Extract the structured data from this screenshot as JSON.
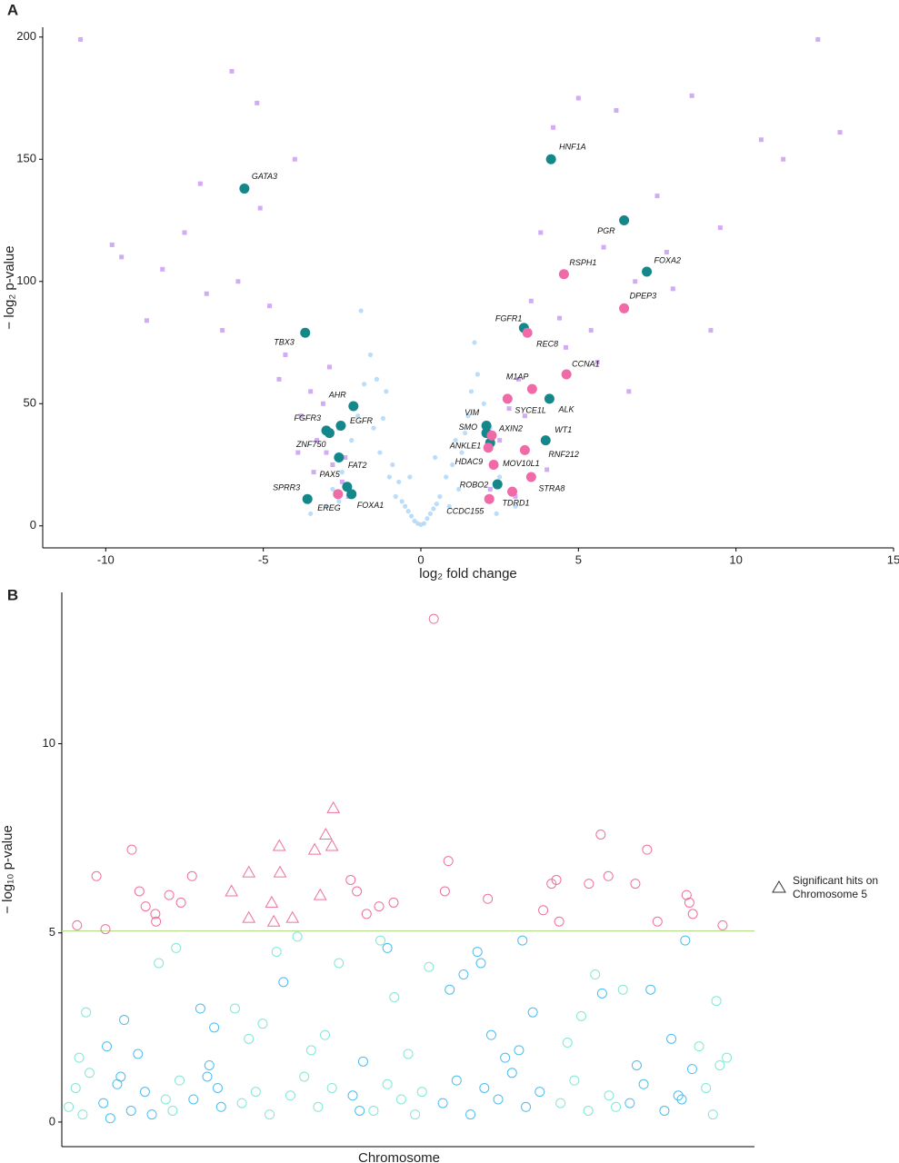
{
  "chart_data": [
    {
      "type": "scatter",
      "panel": "A",
      "xlabel": "log₂ fold change",
      "ylabel": "− log₂ p-value",
      "xlim": [
        -12,
        15
      ],
      "ylim": [
        -9,
        204
      ],
      "xticks": [
        -10,
        -5,
        0,
        5,
        10,
        15
      ],
      "yticks": [
        0,
        50,
        100,
        150,
        200
      ],
      "series": [
        {
          "color": "#aad4f7",
          "marker": "circle",
          "x": [
            -3.5,
            -3,
            -2.8,
            -2.5,
            -2.2,
            -2,
            -1.8,
            -1.6,
            -1.5,
            -1.3,
            -1.1,
            -1,
            -0.9,
            -0.7,
            -0.6,
            -0.5,
            -0.4,
            -0.3,
            -0.2,
            -0.1,
            0,
            0.1,
            0.2,
            0.3,
            0.4,
            0.5,
            0.6,
            0.8,
            1,
            1.1,
            1.3,
            1.5,
            1.6,
            1.8,
            2,
            2.2,
            2.5,
            3,
            -1.9,
            -1.4,
            1.7,
            1.2,
            -0.8,
            0.9,
            -2.6,
            2.4,
            -1.2,
            1.4,
            -0.35,
            0.45
          ],
          "y": [
            5,
            8,
            15,
            22,
            35,
            45,
            58,
            70,
            40,
            30,
            55,
            20,
            25,
            18,
            10,
            8,
            6,
            4,
            2,
            1,
            0.5,
            1,
            3,
            5,
            7,
            9,
            12,
            20,
            25,
            35,
            30,
            45,
            55,
            62,
            50,
            40,
            20,
            8,
            88,
            60,
            75,
            15,
            12,
            8,
            10,
            5,
            44,
            38,
            20,
            28
          ]
        },
        {
          "color": "#c48df2",
          "marker": "square",
          "x": [
            -10.8,
            -9.5,
            -8.7,
            -7.5,
            -6.8,
            -6,
            -5.2,
            -4.5,
            -4,
            -3.8,
            -3.3,
            -3,
            -2.8,
            -2.5,
            -2.3,
            -4.3,
            -5.8,
            -7,
            -3.5,
            -2.9,
            -9.8,
            -8.2,
            -6.3,
            -4.8,
            -3.1,
            -2.6,
            -3.9,
            -5.1,
            -3.4,
            -2.4,
            12.6,
            13.3,
            11.5,
            10.8,
            9.5,
            8.6,
            8,
            7.5,
            6.8,
            6.2,
            5.8,
            5.4,
            5,
            4.6,
            4.2,
            3.8,
            3.5,
            3.1,
            2.8,
            2.5,
            2.3,
            2.2,
            3.3,
            4.4,
            5.6,
            6.6,
            7.8,
            9.2,
            4,
            3
          ],
          "y": [
            199,
            110,
            84,
            120,
            95,
            186,
            173,
            60,
            150,
            45,
            35,
            30,
            25,
            18,
            12,
            70,
            100,
            140,
            55,
            65,
            115,
            105,
            80,
            90,
            50,
            40,
            30,
            130,
            22,
            28,
            199,
            161,
            150,
            158,
            122,
            176,
            97,
            135,
            100,
            170,
            114,
            80,
            175,
            73,
            163,
            120,
            92,
            60,
            48,
            35,
            25,
            15,
            45,
            85,
            67,
            55,
            112,
            80,
            23,
            12
          ]
        }
      ],
      "highlights": {
        "labels": [
          "GATA3",
          "HNF1A",
          "PGR",
          "FOXA2",
          "TBX3",
          "AHR",
          "EGFR",
          "FGFR3",
          "ZNF750",
          "FAT2",
          "PAX5",
          "FOXA1",
          "SPRR3",
          "EREG",
          "SMO",
          "VIM",
          "ANKLE1",
          "ALK",
          "WT1",
          "ROBO2",
          "FGFR1",
          "REC8",
          "RSPH1",
          "DPEP3",
          "CCNA1",
          "M1AP",
          "SYCE1L",
          "AXIN2",
          "HDAC9",
          "RNF212",
          "MOV10L1",
          "STRA8",
          "TDRD1",
          "CCDC155"
        ],
        "x": [
          -5.6,
          4.13,
          6.45,
          7.17,
          -3.67,
          -2.14,
          -2.54,
          -3.0,
          -2.9,
          -2.6,
          -2.34,
          -2.2,
          -3.6,
          -2.63,
          2.08,
          2.08,
          2.2,
          4.08,
          3.96,
          2.43,
          3.27,
          3.38,
          4.54,
          6.45,
          4.62,
          3.53,
          2.75,
          2.25,
          2.14,
          3.3,
          2.31,
          3.5,
          2.9,
          2.17
        ],
        "y": [
          138,
          150,
          125,
          104,
          79,
          49,
          41,
          39,
          38,
          28,
          16,
          13,
          11,
          13,
          41,
          38,
          34,
          52,
          35,
          17,
          81,
          79,
          103,
          89,
          62,
          56,
          52,
          37,
          32,
          31,
          25,
          20,
          14,
          11
        ],
        "colors": [
          "#14878a",
          "#14878a",
          "#14878a",
          "#14878a",
          "#14878a",
          "#14878a",
          "#14878a",
          "#14878a",
          "#14878a",
          "#14878a",
          "#14878a",
          "#14878a",
          "#14878a",
          "#ef6aa6",
          "#14878a",
          "#14878a",
          "#14878a",
          "#14878a",
          "#14878a",
          "#14878a",
          "#14878a",
          "#ef6aa6",
          "#ef6aa6",
          "#ef6aa6",
          "#ef6aa6",
          "#ef6aa6",
          "#ef6aa6",
          "#ef6aa6",
          "#ef6aa6",
          "#ef6aa6",
          "#ef6aa6",
          "#ef6aa6",
          "#ef6aa6",
          "#ef6aa6"
        ]
      }
    },
    {
      "type": "scatter",
      "panel": "B",
      "xlabel": "Chromosome",
      "ylabel": "− log₁₀ p-value",
      "xlim": [
        0,
        100
      ],
      "ylim": [
        -0.65,
        14
      ],
      "yticks": [
        0,
        5,
        10
      ],
      "hline": 5.05,
      "hline_color": "#b9dc8e",
      "series": [
        {
          "color": "#7fe8d6",
          "marker": "open-circle",
          "x": [
            1,
            2,
            3,
            4,
            15,
            16,
            17,
            26,
            28,
            30,
            33,
            35,
            37,
            39,
            45,
            47,
            49,
            51,
            52,
            72,
            74,
            76,
            79,
            80,
            93,
            94,
            95,
            3.5,
            16.5,
            27,
            31,
            36,
            40,
            48,
            50,
            73,
            77,
            94.5,
            2.5,
            14,
            25,
            29,
            34,
            38,
            46,
            53,
            75,
            81,
            92,
            96
          ],
          "y": [
            0.4,
            0.9,
            0.2,
            1.3,
            0.6,
            0.3,
            1.1,
            0.5,
            0.8,
            0.2,
            0.7,
            1.2,
            0.4,
            0.9,
            0.3,
            1,
            0.6,
            0.2,
            0.8,
            0.5,
            1.1,
            0.3,
            0.7,
            0.4,
            0.9,
            0.2,
            1.5,
            2.9,
            4.6,
            2.2,
            4.5,
            1.9,
            4.2,
            3.3,
            1.8,
            2.1,
            3.9,
            3.2,
            1.7,
            4.2,
            3.0,
            2.6,
            4.9,
            2.3,
            4.8,
            4.1,
            2.8,
            3.5,
            2.0,
            1.7
          ]
        },
        {
          "color": "#4bbdf0",
          "marker": "open-circle",
          "x": [
            6,
            8,
            10,
            12,
            13,
            19,
            21,
            23,
            42,
            43,
            55,
            57,
            59,
            61,
            63,
            65,
            67,
            69,
            82,
            84,
            87,
            89,
            91,
            6.5,
            9,
            11,
            20,
            22,
            56,
            60,
            64,
            68,
            83,
            88,
            90,
            7,
            22.5,
            58,
            62,
            66,
            43.5,
            85,
            78,
            47,
            32,
            60.5,
            66.5,
            21.3,
            8.5,
            89.5
          ],
          "y": [
            0.5,
            1,
            0.3,
            0.8,
            0.2,
            0.6,
            1.2,
            0.4,
            0.7,
            0.3,
            0.5,
            1.1,
            0.2,
            0.9,
            0.6,
            1.3,
            0.4,
            0.8,
            0.5,
            1,
            0.3,
            0.7,
            1.4,
            2,
            2.7,
            1.8,
            3,
            2.5,
            3.5,
            4.5,
            1.7,
            2.9,
            1.5,
            2.2,
            4.8,
            0.1,
            0.9,
            3.9,
            2.3,
            1.9,
            1.6,
            3.5,
            3.4,
            4.6,
            3.7,
            4.2,
            4.8,
            1.5,
            1.2,
            0.6
          ]
        },
        {
          "color": "#ef7198",
          "marker": "open-circle",
          "x": [
            53.7,
            2.2,
            6.3,
            5,
            10.1,
            11.2,
            12.1,
            13.5,
            13.6,
            15.5,
            17.2,
            18.8,
            41.7,
            42.6,
            44,
            45.8,
            47.9,
            55.8,
            55.3,
            61.5,
            69.5,
            70.7,
            71.4,
            71.8,
            76.1,
            77.8,
            78.9,
            82.8,
            84.5,
            86,
            90.2,
            90.6,
            91.1,
            95.4
          ],
          "y": [
            13.3,
            5.2,
            5.1,
            6.5,
            7.2,
            6.1,
            5.7,
            5.5,
            5.3,
            6.0,
            5.8,
            6.5,
            6.4,
            6.1,
            5.5,
            5.7,
            5.8,
            6.9,
            6.1,
            5.9,
            5.6,
            6.3,
            6.4,
            5.3,
            6.3,
            7.6,
            6.5,
            6.3,
            7.2,
            5.3,
            6.0,
            5.8,
            5.5,
            5.2
          ]
        },
        {
          "name": "Significant hits on Chromosome 5",
          "color": "#ef7198",
          "marker": "open-triangle",
          "x": [
            27,
            24.5,
            31.4,
            31.5,
            30.3,
            27,
            30.6,
            33.3,
            36.5,
            38.1,
            39,
            39.2,
            37.3
          ],
          "y": [
            6.6,
            6.1,
            7.3,
            6.6,
            5.8,
            5.4,
            5.3,
            5.4,
            7.2,
            7.6,
            7.3,
            8.3,
            6.0
          ]
        }
      ]
    }
  ]
}
